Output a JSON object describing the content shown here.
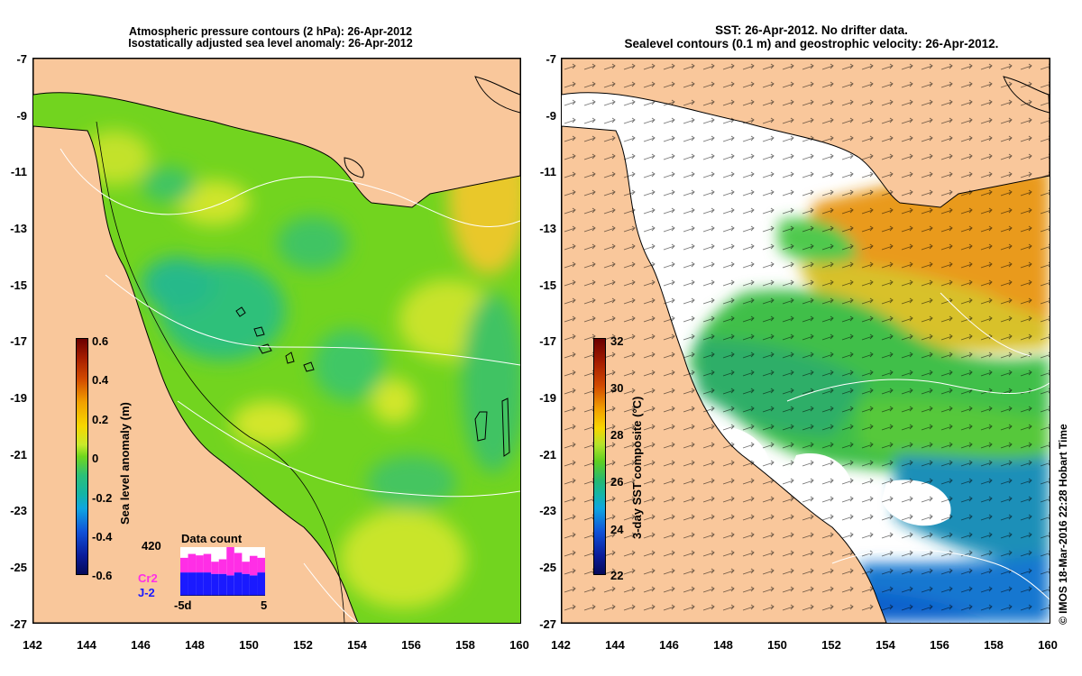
{
  "left_panel": {
    "title_line1": "Atmospheric pressure contours (2 hPa): 26-Apr-2012",
    "title_line2": "Isostatically adjusted sea level anomaly: 26-Apr-2012",
    "y_ticks": [
      "-7",
      "-9",
      "-11",
      "-13",
      "-15",
      "-17",
      "-19",
      "-21",
      "-23",
      "-25",
      "-27"
    ],
    "x_ticks": [
      "142",
      "144",
      "146",
      "148",
      "150",
      "152",
      "154",
      "156",
      "158",
      "160"
    ],
    "colorbar": {
      "title": "Sea level anomaly (m)",
      "ticks": [
        "0.6",
        "0.4",
        "0.2",
        "0",
        "-0.2",
        "-0.4",
        "-0.6"
      ],
      "range": [
        -0.6,
        0.6
      ]
    },
    "data_count": {
      "title": "Data count",
      "max_label": "420",
      "x_min_label": "-5d",
      "x_max_label": "5",
      "series": [
        {
          "name": "Cr2",
          "color": "#ff2ee6"
        },
        {
          "name": "J-2",
          "color": "#1a1aff"
        }
      ],
      "j2_fraction": [
        0.48,
        0.48,
        0.48,
        0.48,
        0.45,
        0.45,
        0.42,
        0.48,
        0.45,
        0.42,
        0.48
      ],
      "cr2_fraction": [
        0.3,
        0.38,
        0.35,
        0.38,
        0.25,
        0.3,
        0.7,
        0.4,
        0.25,
        0.4,
        0.3
      ]
    }
  },
  "right_panel": {
    "title_line1": "SST: 26-Apr-2012. No drifter data.",
    "title_line2": "Sealevel contours (0.1 m) and geostrophic velocity: 26-Apr-2012.",
    "y_ticks": [
      "-7",
      "-9",
      "-11",
      "-13",
      "-15",
      "-17",
      "-19",
      "-21",
      "-23",
      "-25",
      "-27"
    ],
    "x_ticks": [
      "142",
      "144",
      "146",
      "148",
      "150",
      "152",
      "154",
      "156",
      "158",
      "160"
    ],
    "colorbar": {
      "title": "3-day SST composite (°C)",
      "ticks": [
        "32",
        "30",
        "28",
        "26",
        "24",
        "22"
      ],
      "range": [
        22,
        32
      ]
    }
  },
  "watermark": "© IMOS 18-Mar-2016 22:28 Hobart Time",
  "colors": {
    "land": "#f9c79b",
    "coast": "#000000",
    "sla_background": "#6fd61e"
  }
}
